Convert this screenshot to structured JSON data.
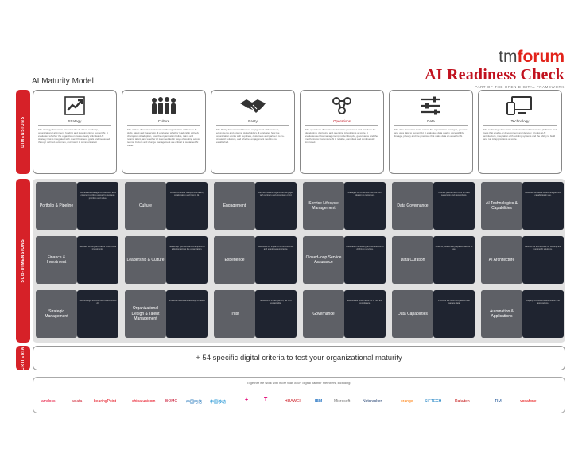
{
  "brand": {
    "tm": "tm",
    "forum": "forum",
    "title": "AI Readiness Check",
    "subtitle": "PART OF THE OPEN DIGITAL FRAMEWORK"
  },
  "page_title": "AI Maturity Model",
  "row_labels": {
    "dimensions": "DIMENSIONS",
    "subdimensions": "SUB-DIMENSIONS",
    "criteria": "CRITERIA"
  },
  "dimensions": [
    {
      "name": "Strategy",
      "icon": "chart-icon",
      "text": "The strategy dimension assesses the AI vision, roadmap, organizational alignment, funding and investments to support AI. It evaluates whether the organization has a clearly articulated AI strategy that is integrated with overall business goals and measured through defined outcomes, and how it is communicated."
    },
    {
      "name": "Culture",
      "icon": "people-icon",
      "text": "The culture dimension looks at how the organization addresses AI skills, talent and leadership. It evaluates whether leadership actively champions AI adoption, how the organization builds, trains and retains talent, and whether AI is embedded in ways of working across teams. Culture and change management are critical to sustained AI value."
    },
    {
      "name": "Parity",
      "icon": "handshake-icon",
      "text": "The Parity dimension addresses engagement with partners, ecosystems and external stakeholders. It evaluates how the organization works with suppliers, customers and partners to co-create AI solutions, and whether engagement models are established."
    },
    {
      "name": "Operations",
      "icon": "network-icon",
      "text": "The operations dimension looks at the processes and practices for developing, deploying and operating AI solutions at scale. It evaluates service management, model lifecycle, governance and the mechanisms that ensure AI is reliable, compliant and continuously improved."
    },
    {
      "name": "Data",
      "icon": "sliders-icon",
      "text": "The data dimension looks at how the organization manages, governs and uses data to support AI. It evaluates data quality, accessibility, lineage, privacy and the practices that make data an asset for AI."
    },
    {
      "name": "Technology",
      "icon": "devices-icon",
      "text": "The technology dimension evaluates the infrastructure, platforms and tools that enable AI development and delivery. It looks at AI architecture, integration with existing systems and the ability to build and run AI applications at scale."
    }
  ],
  "subdimensions": [
    [
      {
        "name": "Portfolio & Pipeline",
        "desc": "Defines and manages AI initiatives as a coherent portfolio aligned to business priorities and value."
      },
      {
        "name": "Culture",
        "desc": "Fosters a culture of experimentation, collaboration and trust in AI."
      },
      {
        "name": "Engagement",
        "desc": "Defines how the organization engages with partners and ecosystem on AI."
      },
      {
        "name": "Service Lifecycle Management",
        "desc": "Manages the AI service lifecycle from ideation to retirement."
      },
      {
        "name": "Data Governance",
        "desc": "Defines policies and roles for data ownership and stewardship."
      },
      {
        "name": "AI Technologies & Capabilities",
        "desc": "Assesses available AI technologies and capabilities in use."
      }
    ],
    [
      {
        "name": "Finance & Investment",
        "desc": "Allocates funding and tracks return on AI investments."
      },
      {
        "name": "Leadership & Culture",
        "desc": "Leadership sponsors and champions AI adoption across the organization."
      },
      {
        "name": "Experience",
        "desc": "Measures the impact of AI on customer and employee experience."
      },
      {
        "name": "Closed-loop Service Assurance",
        "desc": "Automates monitoring and remediation of AI-driven services."
      },
      {
        "name": "Data Curation",
        "desc": "Collects, cleans and prepares data for AI use."
      },
      {
        "name": "AI Architecture",
        "desc": "Defines the architecture for building and running AI solutions."
      }
    ],
    [
      {
        "name": "Strategic Management",
        "desc": "Sets strategic direction and objectives for AI."
      },
      {
        "name": "Organizational Design & Talent Management",
        "desc": "Structures teams and develops AI talent."
      },
      {
        "name": "Trust",
        "desc": "Ensures AI is transparent, fair and explainable."
      },
      {
        "name": "Governance",
        "desc": "Establishes governance for AI risk and compliance."
      },
      {
        "name": "Data Capabilities",
        "desc": "Provides the tools and platforms to manage data."
      },
      {
        "name": "Automation & Applications",
        "desc": "Deploys AI-powered automation and applications."
      }
    ]
  ],
  "criteria_text": "+ 54 specific digital criteria to test your organizational maturity",
  "partners_lead": "Together we work with more than 850+ digital partner members, including:",
  "partners": [
    {
      "name": "amdocs",
      "color": "#e4002b"
    },
    {
      "name": "axiata",
      "color": "#cf2030"
    },
    {
      "name": "bearingPoint",
      "color": "#e30613"
    },
    {
      "name": "china unicom",
      "color": "#e60012"
    },
    {
      "name": "BOMC",
      "color": "#c8102e"
    },
    {
      "name": "中国电信",
      "color": "#0061b0"
    },
    {
      "name": "中国移动",
      "color": "#0085cf"
    },
    {
      "name": "+",
      "color": "#e20074"
    },
    {
      "name": "T",
      "color": "#e20074"
    },
    {
      "name": "HUAWEI",
      "color": "#c7000b"
    },
    {
      "name": "IBM",
      "color": "#1f70c1"
    },
    {
      "name": "Microsoft",
      "color": "#737373"
    },
    {
      "name": "Netcracker",
      "color": "#1a3a6b"
    },
    {
      "name": "orange",
      "color": "#ff7900"
    },
    {
      "name": "SIFTECH",
      "color": "#0072bc"
    },
    {
      "name": "Rakuten",
      "color": "#bf0000"
    },
    {
      "name": "TIM",
      "color": "#003f8a"
    },
    {
      "name": "vodafone",
      "color": "#e60000"
    }
  ]
}
